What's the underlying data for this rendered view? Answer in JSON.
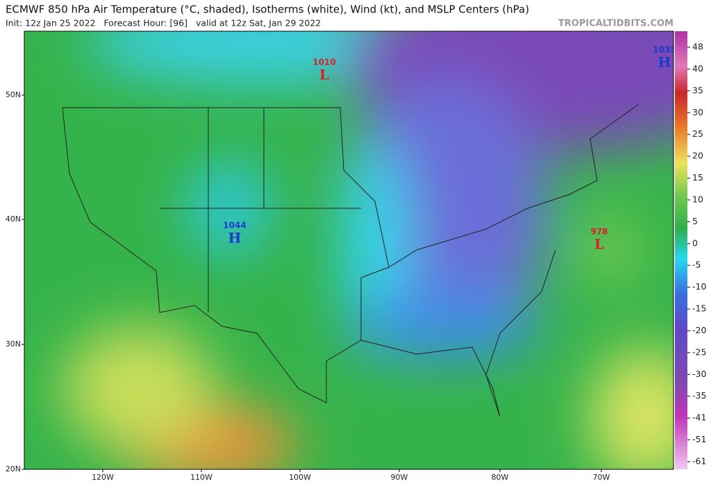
{
  "header": {
    "title": "ECMWF 850 hPa Air Temperature (°C, shaded), Isotherms (white), Wind (kt), and MSLP Centers (hPa)",
    "subtitle": "Init: 12z Jan 25 2022   Forecast Hour: [96]   valid at 12z Sat, Jan 29 2022",
    "source": "TROPICALTIDBITS.COM"
  },
  "map": {
    "lat_labels": [
      "50N",
      "40N",
      "30N",
      "20N"
    ],
    "lon_labels": [
      "120W",
      "110W",
      "100W",
      "90W",
      "80W",
      "70W"
    ],
    "pressure_centers": [
      {
        "letter": "L",
        "value": 1010
      },
      {
        "letter": "H",
        "value": 1044
      },
      {
        "letter": "L",
        "value": 978
      },
      {
        "letter": "H",
        "value": 1035
      }
    ]
  },
  "colorbar": {
    "ticks": [
      48,
      40,
      35,
      30,
      25,
      20,
      15,
      10,
      5,
      0,
      -5,
      -10,
      -15,
      -20,
      -25,
      -30,
      -35,
      -41,
      -51,
      -61
    ]
  }
}
